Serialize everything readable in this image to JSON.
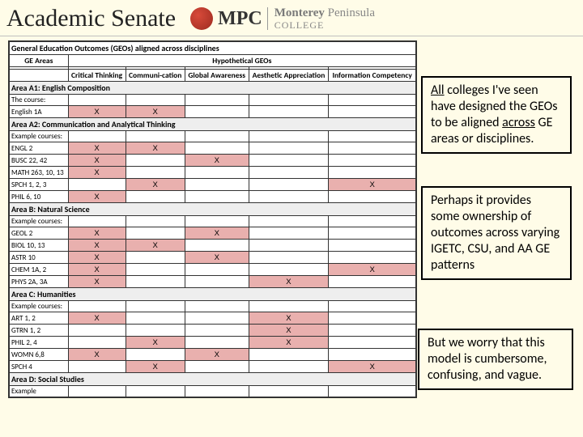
{
  "header": {
    "title": "Academic Senate",
    "logo_abbr": "MPC",
    "logo_line1a": "Monterey",
    "logo_line1b": "Peninsula",
    "logo_line2": "COLLEGE"
  },
  "table": {
    "title": "General Education Outcomes (GEOs) aligned across disciplines",
    "ge_areas_label": "GE Areas",
    "hypo_label": "Hypothetical GEOs",
    "cols": [
      "Critical Thinking",
      "Communi-cation",
      "Global Awareness",
      "Aesthetic Appreciation",
      "Information Competency"
    ],
    "areas": [
      {
        "name": "Area A1: English Composition",
        "example_label": "The course:",
        "rows": [
          {
            "label": "English 1A",
            "marks": [
              "X",
              "X",
              "",
              "",
              ""
            ],
            "pink": [
              1,
              2
            ]
          }
        ]
      },
      {
        "name": "Area A2: Communication and Analytical Thinking",
        "example_label": "Example courses:",
        "rows": [
          {
            "label": "ENGL 2",
            "marks": [
              "X",
              "X",
              "",
              "",
              ""
            ],
            "pink": [
              1,
              2
            ]
          },
          {
            "label": "BUSC 22, 42",
            "marks": [
              "X",
              "",
              "X",
              "",
              ""
            ],
            "pink": [
              1,
              3
            ]
          },
          {
            "label": "MATH 263, 10, 13",
            "marks": [
              "X",
              "",
              "",
              "",
              ""
            ],
            "pink": [
              1
            ]
          },
          {
            "label": "SPCH 1, 2, 3",
            "marks": [
              "",
              "X",
              "",
              "",
              "X"
            ],
            "pink": [
              2,
              5
            ]
          },
          {
            "label": "PHIL 6, 10",
            "marks": [
              "X",
              "",
              "",
              "",
              ""
            ],
            "pink": [
              1
            ]
          }
        ]
      },
      {
        "name": "Area B: Natural Science",
        "example_label": "Example courses:",
        "rows": [
          {
            "label": "GEOL 2",
            "marks": [
              "X",
              "",
              "X",
              "",
              ""
            ],
            "pink": [
              1,
              3
            ]
          },
          {
            "label": "BIOL 10, 13",
            "marks": [
              "X",
              "X",
              "",
              "",
              ""
            ],
            "pink": [
              1,
              2
            ]
          },
          {
            "label": "ASTR 10",
            "marks": [
              "X",
              "",
              "X",
              "",
              ""
            ],
            "pink": [
              1,
              3
            ]
          },
          {
            "label": "CHEM 1A, 2",
            "marks": [
              "X",
              "",
              "",
              "",
              "X"
            ],
            "pink": [
              1,
              5
            ]
          },
          {
            "label": "PHYS 2A, 3A",
            "marks": [
              "X",
              "",
              "",
              "X",
              ""
            ],
            "pink": [
              1,
              4
            ]
          }
        ]
      },
      {
        "name": "Area C: Humanities",
        "example_label": "Example courses:",
        "rows": [
          {
            "label": "ART 1, 2",
            "marks": [
              "X",
              "",
              "",
              "X",
              ""
            ],
            "pink": [
              1,
              4
            ]
          },
          {
            "label": "GTRN 1, 2",
            "marks": [
              "",
              "",
              "",
              "X",
              ""
            ],
            "pink": [
              4
            ]
          },
          {
            "label": "PHIL 2, 4",
            "marks": [
              "",
              "X",
              "",
              "X",
              ""
            ],
            "pink": [
              2,
              4
            ]
          },
          {
            "label": "WOMN 6,8",
            "marks": [
              "X",
              "",
              "X",
              "",
              ""
            ],
            "pink": [
              1,
              3
            ]
          },
          {
            "label": "SPCH 4",
            "marks": [
              "",
              "X",
              "",
              "",
              "X"
            ],
            "pink": [
              2,
              5
            ]
          }
        ]
      },
      {
        "name": "Area D: Social Studies",
        "example_label": "Example",
        "rows": []
      }
    ],
    "colors": {
      "pink": "#e9b0ae",
      "border": "#333333",
      "background": "#ffffff",
      "page_bg": "#fffce8"
    }
  },
  "callouts": {
    "c1_pre": "All",
    "c1_mid": " colleges I've seen have designed the GEOs to be aligned ",
    "c1_u2": "across",
    "c1_post": " GE areas or disciplines.",
    "c2": "Perhaps it provides some ownership of outcomes across varying IGETC, CSU, and AA GE patterns",
    "c3": "But we worry that this model is cumbersome, confusing, and vague."
  }
}
